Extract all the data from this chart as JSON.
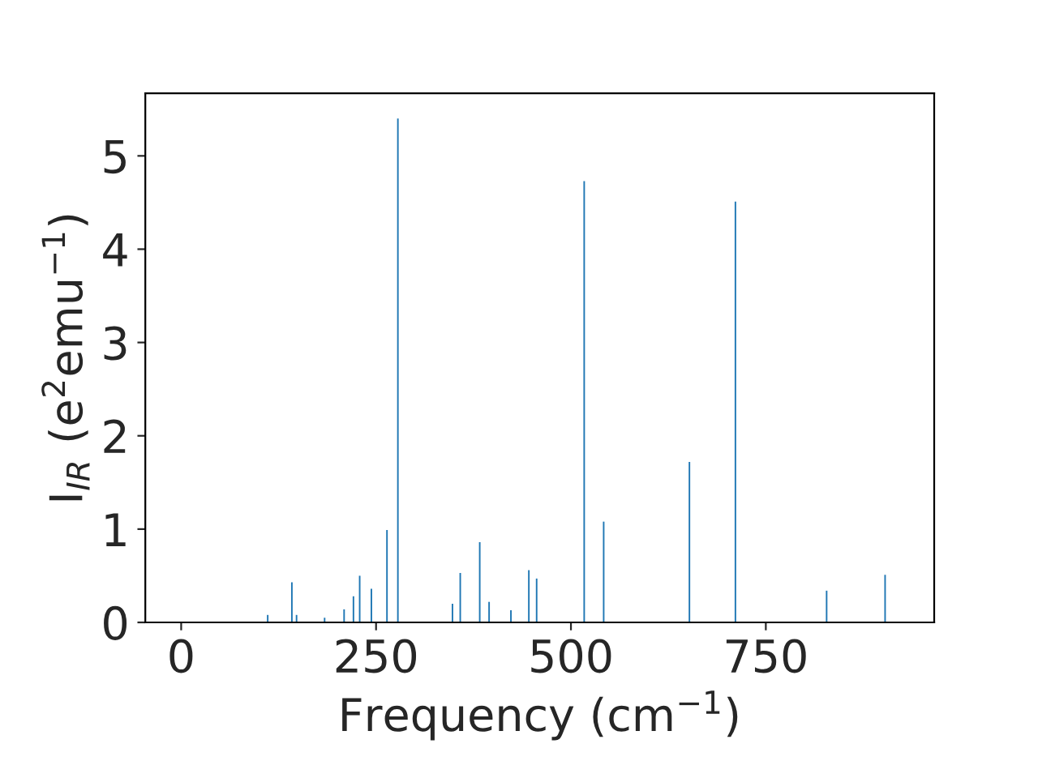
{
  "chart_data": {
    "type": "bar",
    "xlabel": "Frequency (cm$^{−1}$)",
    "ylabel": "I$_{IR}$ (e$^{2}$emu$^{−1}$)",
    "x": [
      111,
      142,
      148,
      184,
      209,
      221,
      229,
      244,
      264,
      278,
      348,
      358,
      383,
      395,
      423,
      446,
      456,
      517,
      542,
      652,
      711,
      828,
      903
    ],
    "series": [
      {
        "color": "#1f77b4",
        "values": [
          0.08,
          0.43,
          0.08,
          0.05,
          0.14,
          0.28,
          0.5,
          0.36,
          0.99,
          5.4,
          0.2,
          0.53,
          0.86,
          0.22,
          0.13,
          0.56,
          0.47,
          4.73,
          1.08,
          1.72,
          4.51,
          0.34,
          0.51
        ]
      }
    ],
    "xlim": [
      -46,
      966
    ],
    "ylim": [
      0,
      5.67
    ],
    "xticks": [
      0,
      250,
      500,
      750
    ],
    "yticks": [
      0,
      1,
      2,
      3,
      4,
      5
    ],
    "grid": false,
    "legend": false
  }
}
